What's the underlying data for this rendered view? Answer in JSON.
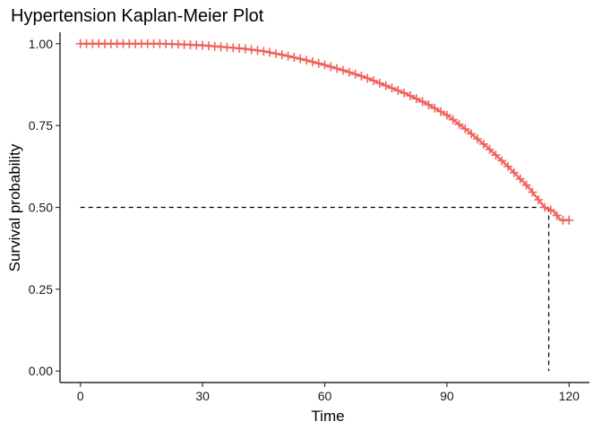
{
  "chart_data": {
    "type": "line",
    "title": "Hypertension Kaplan-Meier Plot",
    "xlabel": "Time",
    "ylabel": "Survival probability",
    "xlim": [
      -5,
      125
    ],
    "ylim": [
      -0.035,
      1.035
    ],
    "x_ticks": [
      "0",
      "30",
      "60",
      "90",
      "120"
    ],
    "y_ticks": [
      "0.00",
      "0.25",
      "0.50",
      "0.75",
      "1.00"
    ],
    "grid": false,
    "legend": "none",
    "series": [
      {
        "color": "#f0635a",
        "censor_marks": true,
        "x": [
          0,
          5,
          10,
          15,
          20,
          25,
          30,
          35,
          40,
          45,
          50,
          55,
          60,
          65,
          70,
          75,
          80,
          85,
          90,
          95,
          100,
          105,
          110,
          114,
          116,
          118,
          120
        ],
        "y": [
          1.0,
          1.0,
          1.0,
          1.0,
          1.0,
          0.998,
          0.995,
          0.99,
          0.985,
          0.977,
          0.965,
          0.951,
          0.935,
          0.917,
          0.897,
          0.872,
          0.847,
          0.817,
          0.782,
          0.735,
          0.683,
          0.625,
          0.562,
          0.5,
          0.49,
          0.461,
          0.461
        ]
      }
    ],
    "median_line": {
      "x": 115,
      "y": 0.5,
      "style": "dashed",
      "color": "#000000"
    }
  }
}
